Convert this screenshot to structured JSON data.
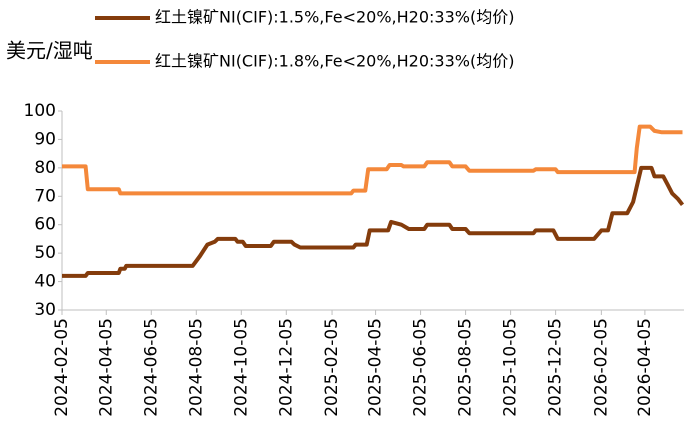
{
  "chart_data": {
    "type": "line",
    "ylabel": "美元/湿吨",
    "ylim": [
      30,
      100
    ],
    "yticks": [
      30,
      40,
      50,
      60,
      70,
      80,
      90,
      100
    ],
    "xlim": [
      "2024-02-05",
      "2026-05-28"
    ],
    "xticks": [
      "2024-02-05",
      "2024-04-05",
      "2024-06-05",
      "2024-08-05",
      "2024-10-05",
      "2024-12-05",
      "2025-02-05",
      "2025-04-05",
      "2025-06-05",
      "2025-08-05",
      "2025-10-05",
      "2025-12-05",
      "2026-02-05",
      "2026-04-05"
    ],
    "grid": false,
    "legend": "top",
    "series": [
      {
        "name": "红土镍矿NI(CIF):1.5%,Fe<20%,H20:33%(均价)",
        "color": "#843c0c",
        "x": [
          "2024-02-05",
          "2024-03-08",
          "2024-03-11",
          "2024-04-22",
          "2024-04-24",
          "2024-04-30",
          "2024-05-02",
          "2024-07-31",
          "2024-08-10",
          "2024-08-20",
          "2024-08-30",
          "2024-09-03",
          "2024-09-27",
          "2024-09-30",
          "2024-10-07",
          "2024-10-11",
          "2024-11-14",
          "2024-11-18",
          "2024-12-12",
          "2024-12-16",
          "2024-12-24",
          "2025-03-06",
          "2025-03-09",
          "2025-03-24",
          "2025-03-28",
          "2025-04-22",
          "2025-04-26",
          "2025-05-10",
          "2025-05-20",
          "2025-06-10",
          "2025-06-14",
          "2025-07-14",
          "2025-07-18",
          "2025-08-05",
          "2025-08-10",
          "2025-11-05",
          "2025-11-08",
          "2025-12-02",
          "2025-12-08",
          "2026-01-26",
          "2026-02-05",
          "2026-02-14",
          "2026-02-20",
          "2026-03-12",
          "2026-03-20",
          "2026-03-31",
          "2026-04-14",
          "2026-04-18",
          "2026-04-30",
          "2026-05-06",
          "2026-05-12",
          "2026-05-20",
          "2026-05-26"
        ],
        "values": [
          42,
          42,
          43,
          43,
          44.5,
          44.5,
          45.5,
          45.5,
          49,
          53,
          54,
          55,
          55,
          54,
          54,
          52.5,
          52.5,
          54,
          54,
          53,
          52,
          52,
          53,
          53,
          58,
          58,
          61,
          60,
          58.5,
          58.5,
          60,
          60,
          58.5,
          58.5,
          57,
          57,
          58,
          58,
          55,
          55,
          58,
          58,
          64,
          64,
          68,
          80,
          80,
          77,
          77,
          74,
          71,
          69,
          67
        ]
      },
      {
        "name": "红土镍矿NI(CIF):1.8%,Fe<20%,H20:33%(均价)",
        "color": "#f4883a",
        "x": [
          "2024-02-05",
          "2024-03-08",
          "2024-03-11",
          "2024-04-22",
          "2024-04-24",
          "2025-03-03",
          "2025-03-06",
          "2025-03-22",
          "2025-03-26",
          "2025-04-20",
          "2025-04-24",
          "2025-05-10",
          "2025-05-13",
          "2025-06-10",
          "2025-06-14",
          "2025-07-14",
          "2025-07-18",
          "2025-08-05",
          "2025-08-10",
          "2025-11-05",
          "2025-11-08",
          "2025-12-05",
          "2025-12-08",
          "2026-03-22",
          "2026-03-25",
          "2026-03-29",
          "2026-04-12",
          "2026-04-18",
          "2026-04-28",
          "2026-05-26"
        ],
        "values": [
          80.5,
          80.5,
          72.5,
          72.5,
          71,
          71,
          72,
          72,
          79.5,
          79.5,
          81,
          81,
          80.5,
          80.5,
          82,
          82,
          80.5,
          80.5,
          79,
          79,
          79.5,
          79.5,
          78.5,
          78.5,
          87,
          94.5,
          94.5,
          93,
          92.5,
          92.5
        ]
      }
    ]
  }
}
